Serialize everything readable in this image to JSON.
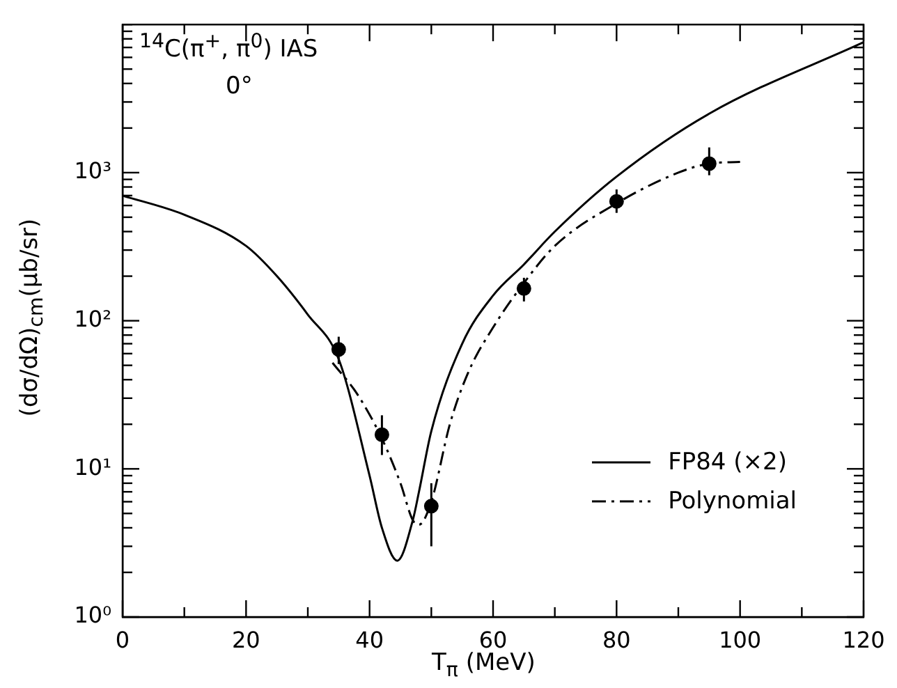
{
  "chart_data": {
    "type": "line",
    "annotations": [
      "$^{14}$C(π$^{+}$, π$^{0}$) IAS",
      "0°"
    ],
    "xlabel": "T$_{π}$ (MeV)",
    "ylabel": "(dσ/dΩ)$_{cm}$(μb/sr)",
    "series": [
      {
        "name": "FP84 (×2)",
        "color": "#000000",
        "line_style": "solid",
        "marker": "none",
        "x": [
          0,
          10,
          20,
          25,
          30,
          35,
          40,
          42,
          44.5,
          47,
          48,
          50,
          55,
          60,
          65,
          70,
          80,
          95,
          120
        ],
        "values": [
          700,
          520,
          320,
          200,
          110,
          55,
          9,
          4,
          2.4,
          4.5,
          7,
          18,
          70,
          148,
          240,
          400,
          940,
          2500,
          7600
        ]
      },
      {
        "name": "Polynomial",
        "color": "#000000",
        "line_style": "dashed",
        "marker": "none",
        "x": [
          34,
          38,
          42,
          45,
          47,
          48,
          50,
          53,
          56,
          60,
          65,
          70,
          80,
          90,
          95,
          100
        ],
        "values": [
          52,
          32,
          16,
          8,
          4.5,
          4.2,
          6,
          20,
          45,
          90,
          180,
          320,
          620,
          1000,
          1150,
          1180
        ]
      },
      {
        "type": "scatter",
        "color": "#000000",
        "marker": "circle",
        "x": [
          35,
          42,
          50,
          65,
          80,
          95
        ],
        "values": [
          64,
          17,
          5.6,
          165,
          640,
          1150
        ],
        "errors": [
          [
            51,
            78
          ],
          [
            12.4,
            23
          ],
          [
            3,
            8
          ],
          [
            135,
            195
          ],
          [
            535,
            770
          ],
          [
            960,
            1480
          ]
        ]
      }
    ],
    "xlim": [
      0,
      120
    ],
    "xticks": [
      0,
      {
        "value": 10,
        "label": null
      },
      20,
      {
        "value": 30,
        "label": null
      },
      40,
      {
        "value": 50,
        "label": null
      },
      60,
      {
        "value": 70,
        "label": null
      },
      80,
      {
        "value": 90,
        "label": null
      },
      100,
      {
        "value": 110,
        "label": null
      },
      120
    ],
    "ylim": [
      1,
      10000
    ],
    "yticks": [
      {
        "value": 1,
        "label": "10⁰"
      },
      {
        "value": 2,
        "label": null
      },
      {
        "value": 3,
        "label": null
      },
      {
        "value": 4,
        "label": null
      },
      {
        "value": 5,
        "label": null
      },
      {
        "value": 6,
        "label": null
      },
      {
        "value": 7,
        "label": null
      },
      {
        "value": 8,
        "label": null
      },
      {
        "value": 9,
        "label": null
      },
      {
        "value": 10,
        "label": "10¹"
      },
      {
        "value": 20,
        "label": null
      },
      {
        "value": 30,
        "label": null
      },
      {
        "value": 40,
        "label": null
      },
      {
        "value": 50,
        "label": null
      },
      {
        "value": 60,
        "label": null
      },
      {
        "value": 70,
        "label": null
      },
      {
        "value": 80,
        "label": null
      },
      {
        "value": 90,
        "label": null
      },
      {
        "value": 100,
        "label": "10²"
      },
      {
        "value": 200,
        "label": null
      },
      {
        "value": 300,
        "label": null
      },
      {
        "value": 400,
        "label": null
      },
      {
        "value": 500,
        "label": null
      },
      {
        "value": 600,
        "label": null
      },
      {
        "value": 700,
        "label": null
      },
      {
        "value": 800,
        "label": null
      },
      {
        "value": 900,
        "label": null
      },
      {
        "value": 1000,
        "label": "10³"
      },
      {
        "value": 2000,
        "label": null
      },
      {
        "value": 3000,
        "label": null
      },
      {
        "value": 4000,
        "label": null
      },
      {
        "value": 5000,
        "label": null
      },
      {
        "value": 6000,
        "label": null
      },
      {
        "value": 7000,
        "label": null
      },
      {
        "value": 8000,
        "label": null
      },
      {
        "value": 9000,
        "label": null
      },
      {
        "value": 10000,
        "label": null
      }
    ],
    "log": true,
    "grid": false,
    "legend": "right"
  }
}
